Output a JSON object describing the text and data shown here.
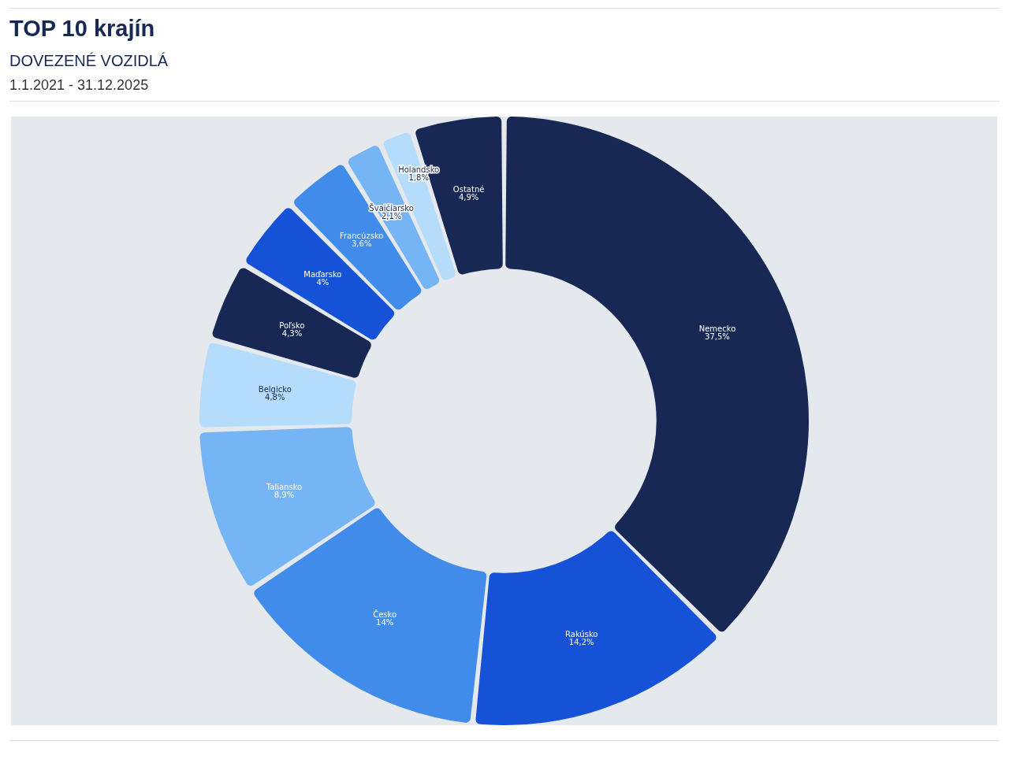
{
  "chart_data": {
    "type": "donut",
    "title": "TOP 10 krajín",
    "subtitle": "DOVEZENÉ VOZIDLÁ",
    "annotations": [
      "1.1.2021 - 31.12.2025"
    ],
    "categories": [
      "Nemecko",
      "Rakúsko",
      "Česko",
      "Taliansko",
      "Belgicko",
      "Poľsko",
      "Maďarsko",
      "Francúzsko",
      "Švajčiarsko",
      "Holandsko",
      "Ostatné"
    ],
    "values": [
      37.5,
      14.2,
      14,
      8.9,
      4.8,
      4.3,
      4,
      3.6,
      2.1,
      1.8,
      4.9
    ],
    "value_labels": [
      "37,5%",
      "14,2%",
      "14%",
      "8,9%",
      "4,8%",
      "4,3%",
      "4%",
      "3,6%",
      "2,1%",
      "1,8%",
      "4,9%"
    ],
    "colors": [
      "#172854",
      "#1652d8",
      "#418cea",
      "#76b5f5",
      "#b6dcfb",
      "#172854",
      "#1652d8",
      "#418cea",
      "#76b5f5",
      "#b6dcfb",
      "#172854"
    ],
    "legend": false
  }
}
